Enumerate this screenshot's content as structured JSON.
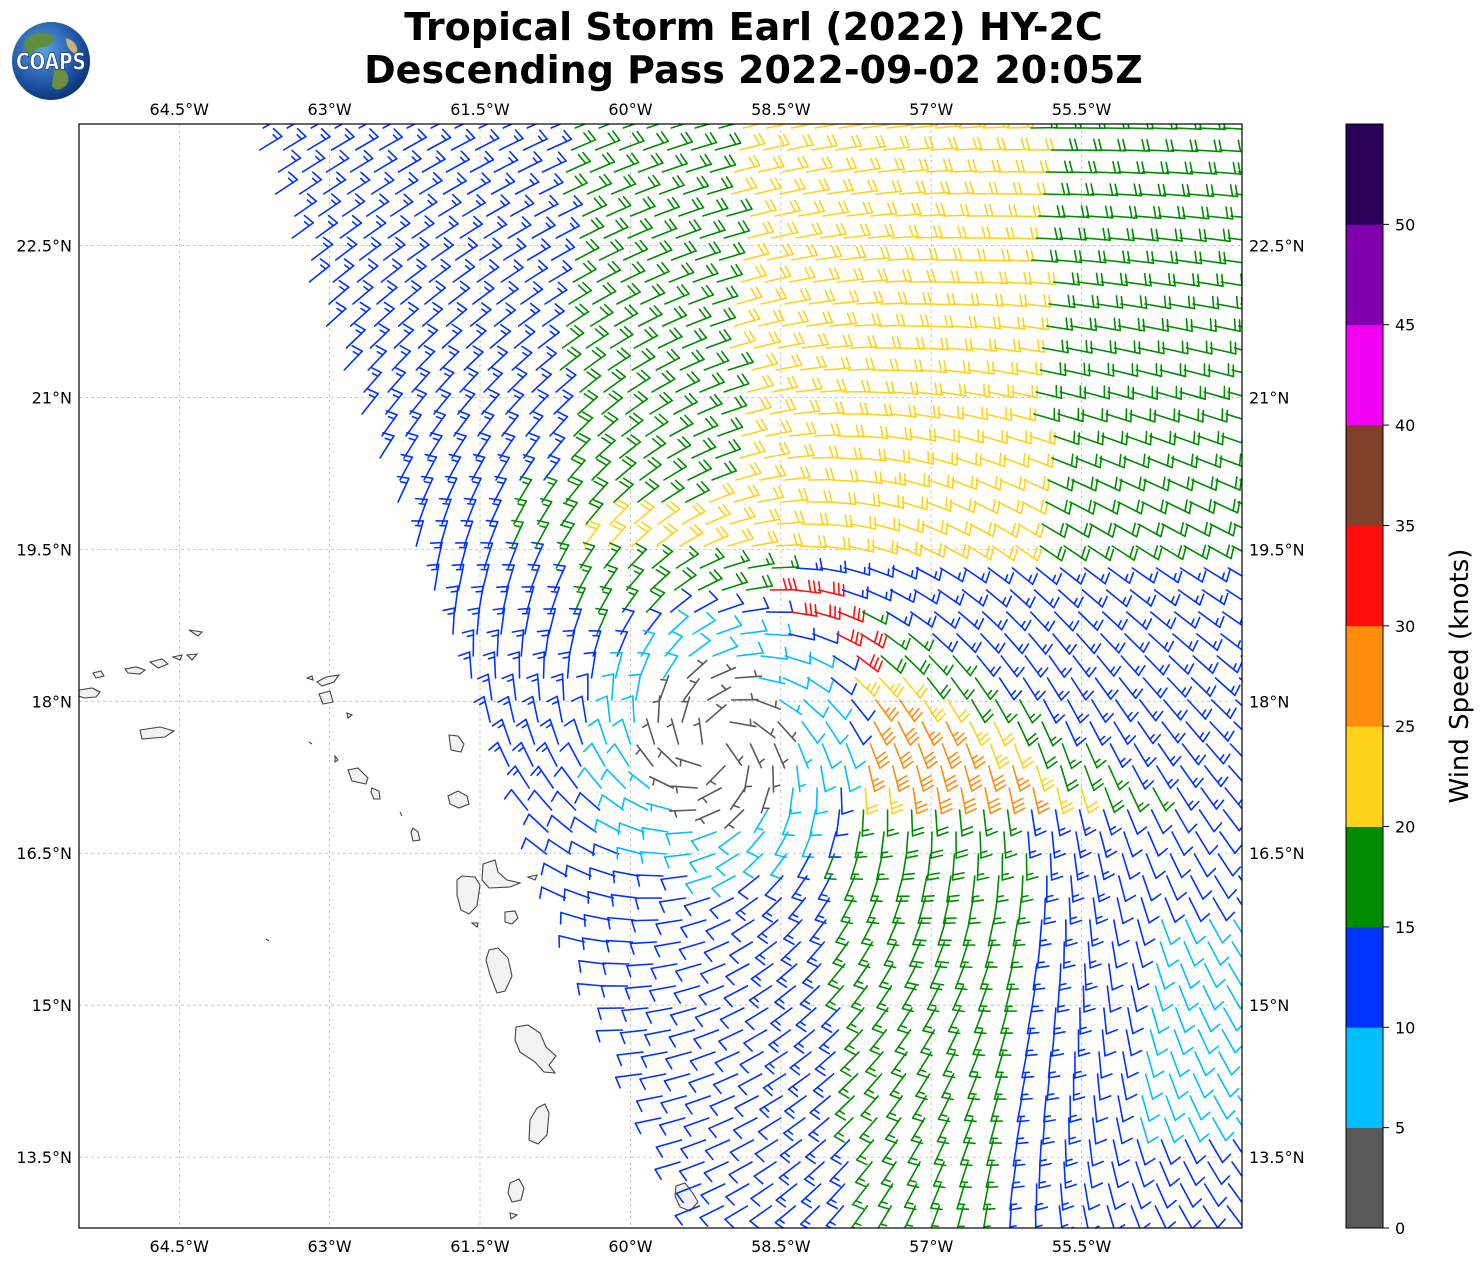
{
  "title_line1": "Tropical Storm Earl (2022) HY-2C",
  "title_line2": "Descending Pass 2022-09-02 20:05Z",
  "logo_text": "COAPS",
  "map": {
    "lon_range": [
      -65.5,
      -53.9
    ],
    "lat_range": [
      12.8,
      23.7
    ],
    "lon_ticks": [
      {
        "value": -64.5,
        "label": "64.5°W"
      },
      {
        "value": -63.0,
        "label": "63°W"
      },
      {
        "value": -61.5,
        "label": "61.5°W"
      },
      {
        "value": -60.0,
        "label": "60°W"
      },
      {
        "value": -58.5,
        "label": "58.5°W"
      },
      {
        "value": -57.0,
        "label": "57°W"
      },
      {
        "value": -55.5,
        "label": "55.5°W"
      }
    ],
    "lat_ticks": [
      {
        "value": 22.5,
        "label": "22.5°N"
      },
      {
        "value": 21.0,
        "label": "21°N"
      },
      {
        "value": 19.5,
        "label": "19.5°N"
      },
      {
        "value": 18.0,
        "label": "18°N"
      },
      {
        "value": 16.5,
        "label": "16.5°N"
      },
      {
        "value": 15.0,
        "label": "15°N"
      },
      {
        "value": 13.5,
        "label": "13.5°N"
      }
    ],
    "storm_center": {
      "lon": -59.15,
      "lat": 17.55
    },
    "islands": [
      "Puerto Rico",
      "Virgin Islands",
      "Anguilla",
      "Saint Martin",
      "Antigua",
      "Montserrat",
      "Guadeloupe",
      "Dominica",
      "Martinique",
      "Saint Lucia",
      "Saint Vincent",
      "Barbados"
    ]
  },
  "colorbar": {
    "label": "Wind Speed (knots)",
    "ticks": [
      "0",
      "5",
      "10",
      "15",
      "20",
      "25",
      "30",
      "35",
      "40",
      "45",
      "50"
    ],
    "bins": [
      {
        "min": 0,
        "max": 5,
        "color": "#595959"
      },
      {
        "min": 5,
        "max": 10,
        "color": "#00bfff"
      },
      {
        "min": 10,
        "max": 15,
        "color": "#0033ff"
      },
      {
        "min": 15,
        "max": 20,
        "color": "#008c00"
      },
      {
        "min": 20,
        "max": 25,
        "color": "#ffd21a"
      },
      {
        "min": 25,
        "max": 30,
        "color": "#ff8c0d"
      },
      {
        "min": 30,
        "max": 35,
        "color": "#ff0d0d"
      },
      {
        "min": 35,
        "max": 40,
        "color": "#80402a"
      },
      {
        "min": 40,
        "max": 45,
        "color": "#f200f2"
      },
      {
        "min": 45,
        "max": 50,
        "color": "#8000b0"
      },
      {
        "min": 50,
        "max": 55,
        "color": "#2b0059"
      }
    ]
  }
}
